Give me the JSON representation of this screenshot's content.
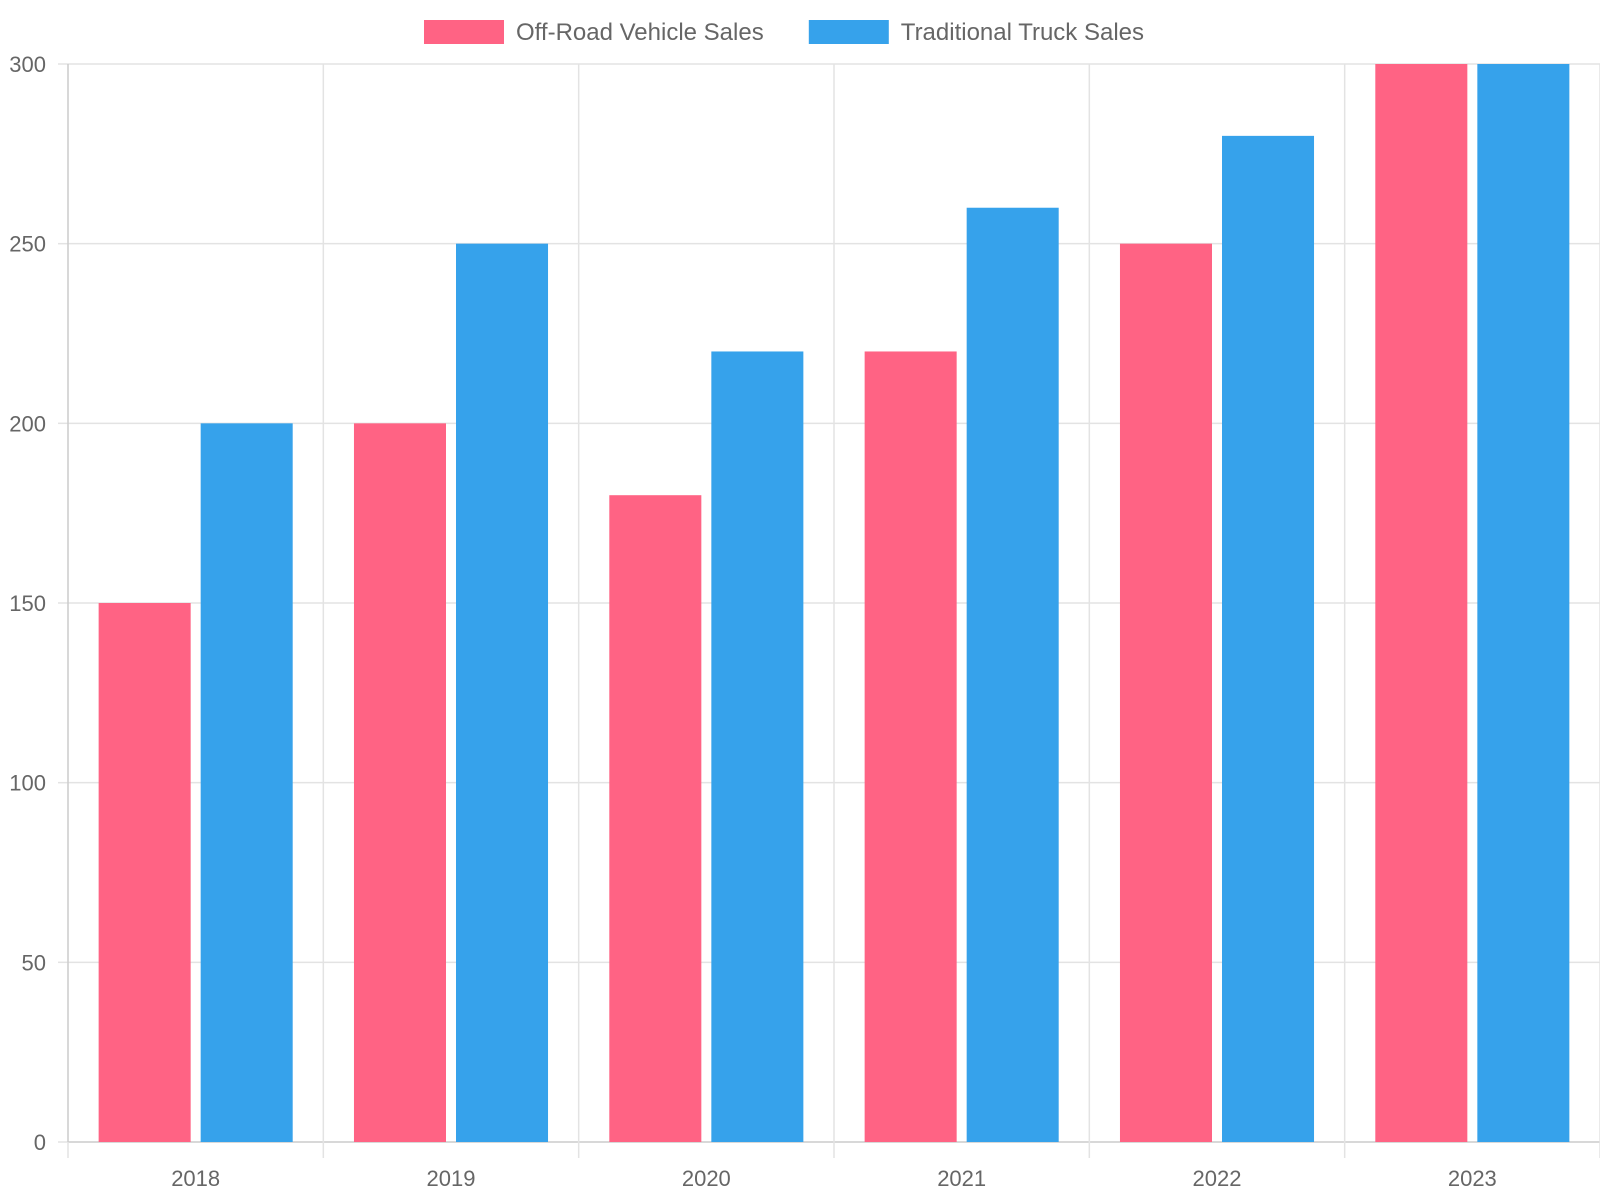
{
  "chart_data": {
    "type": "bar",
    "categories": [
      "2018",
      "2019",
      "2020",
      "2021",
      "2022",
      "2023"
    ],
    "series": [
      {
        "name": "Off-Road Vehicle Sales",
        "color": "#ff6384",
        "values": [
          150,
          200,
          180,
          220,
          250,
          300
        ]
      },
      {
        "name": "Traditional Truck Sales",
        "color": "#36a2eb",
        "values": [
          200,
          250,
          220,
          260,
          280,
          300
        ]
      }
    ],
    "title": "",
    "xlabel": "",
    "ylabel": "",
    "ylim": [
      0,
      300
    ],
    "yticks": [
      "0",
      "50",
      "100",
      "150",
      "200",
      "250",
      "300"
    ],
    "grid": true,
    "legend_position": "top"
  }
}
